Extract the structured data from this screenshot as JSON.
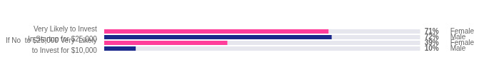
{
  "chart_data": {
    "type": "bar",
    "orientation": "horizontal",
    "stacked": true,
    "categories": [
      "Female",
      "Male",
      "Female",
      "Male"
    ],
    "series": [
      {
        "values": [
          71,
          72,
          39,
          10
        ],
        "colors": [
          "#FF3D9A",
          "#1B2A8A",
          "#FF3D9A",
          "#1B2A8A"
        ],
        "value_labels": [
          "71%",
          "72%",
          "39%",
          "10%"
        ]
      },
      {
        "values": [
          29,
          28,
          61,
          90
        ],
        "color": "#E6E6EE"
      }
    ],
    "xlim": [
      0,
      100
    ],
    "data_labels": true,
    "tick_labels": "y",
    "grid": false,
    "annotations": [
      "Very Likely to Invest\nIn Startup for $25,000",
      "If No  to $25,000 Very  Likely\nto Invest for $10,000"
    ]
  }
}
